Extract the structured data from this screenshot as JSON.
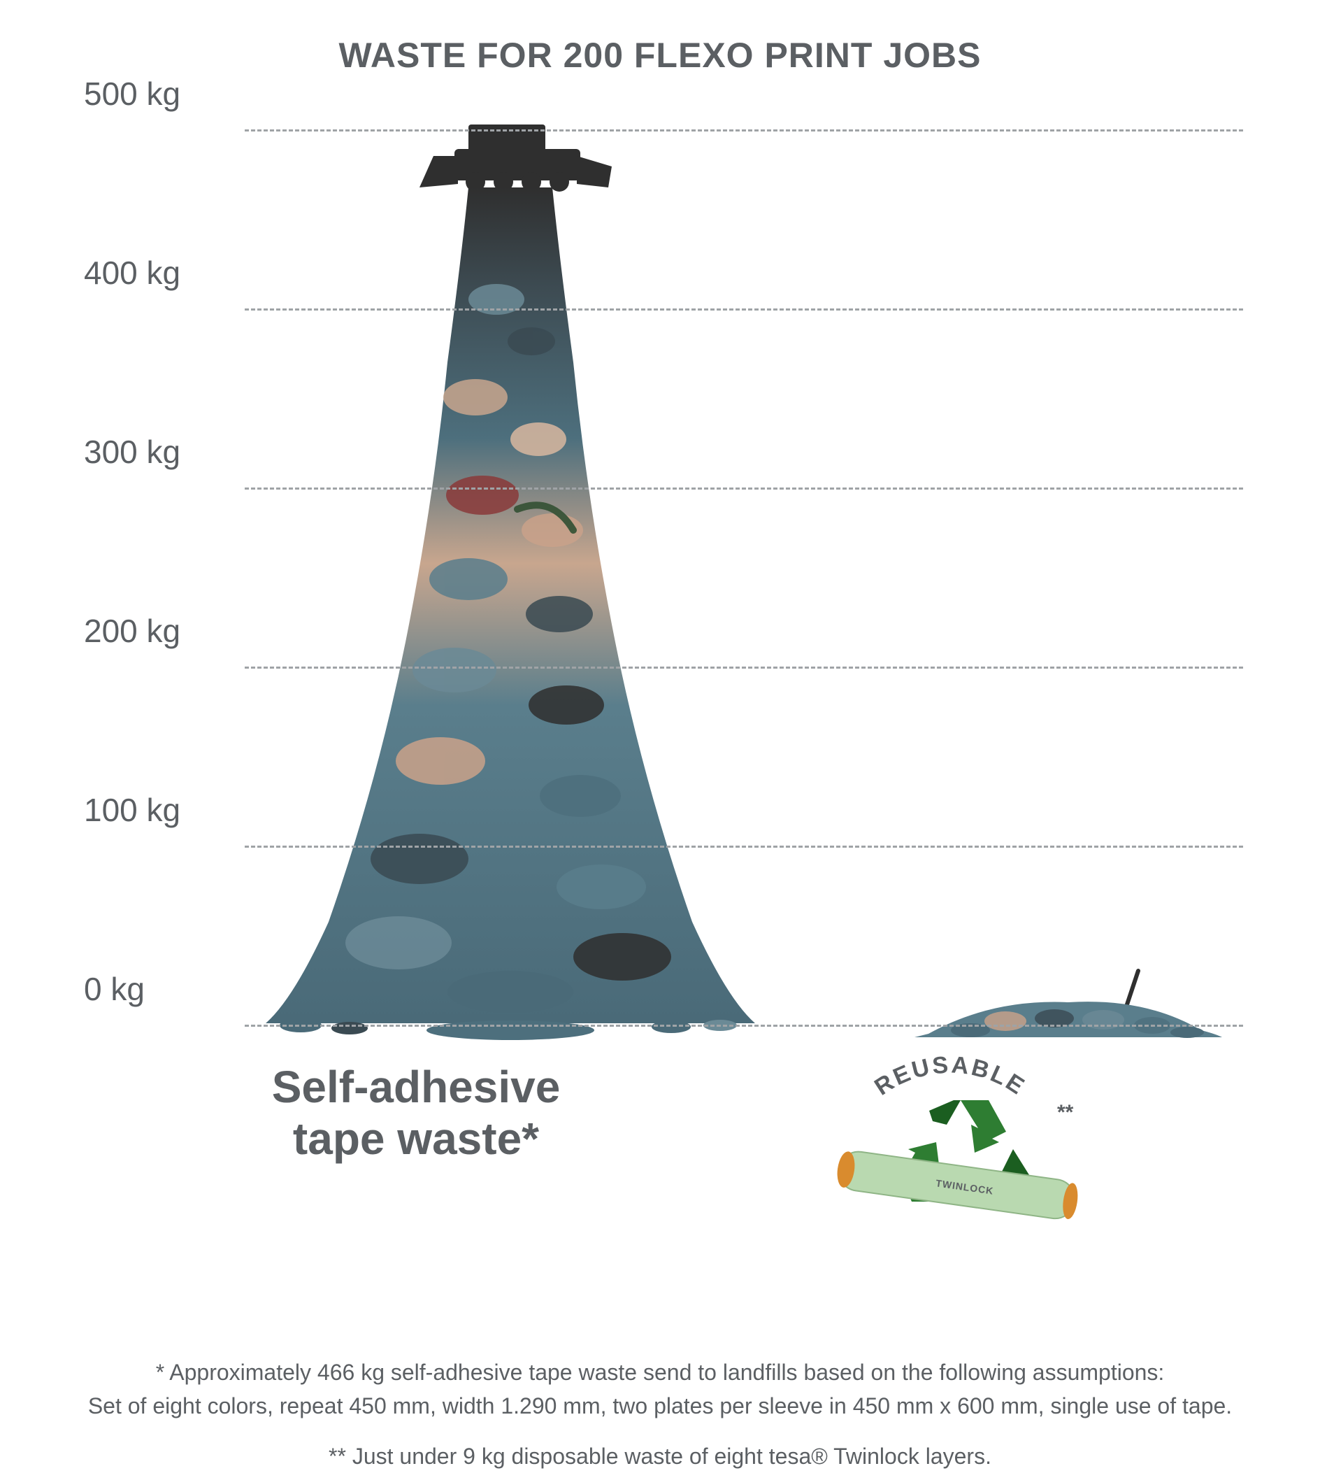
{
  "title": "WASTE FOR 200 FLEXO PRINT JOBS",
  "title_fontsize": 50,
  "title_color": "#5b5f63",
  "chart": {
    "type": "infographic-bar",
    "ylim": [
      0,
      500
    ],
    "ytick_step": 100,
    "y_unit": " kg",
    "ytick_labels": [
      "0 kg",
      "100 kg",
      "200 kg",
      "300 kg",
      "400 kg",
      "500 kg"
    ],
    "ytick_fontsize": 46,
    "ytick_color": "#5b5f63",
    "gridline_color": "#9fa3a6",
    "gridline_dash": "10,10",
    "background_color": "#ffffff",
    "series": [
      {
        "name": "self-adhesive-tape-waste",
        "value_kg": 466,
        "visual_top_kg": 480
      },
      {
        "name": "twinlock-reusable",
        "value_kg": 9,
        "visual_top_kg": 20
      }
    ],
    "pile_colors": {
      "top_dark": "#2f2f2f",
      "upper_blue": "#4d6f7d",
      "mid_tan": "#c8a68e",
      "mid_red": "#8a3a3a",
      "lower_blue": "#5a7e8c",
      "scatter_dark": "#3a4a52",
      "scatter_tan": "#caa28a"
    },
    "bulldozer_color": "#2f2f2f",
    "shovel_color": "#2f2f2f"
  },
  "labels": {
    "left": "Self-adhesive\ntape waste*",
    "left_fontsize": 64,
    "left_color": "#5b5f63",
    "reusable_text": "REUSABLE",
    "reusable_suffix": "**",
    "reusable_fontsize": 34,
    "reusable_color": "#5b5f63"
  },
  "recycle": {
    "arrow_color": "#2e7d32",
    "arrow_shadow": "#1b5e20",
    "roll_body_color": "#b9d9b0",
    "roll_end_color": "#d98b2e",
    "roll_label": "TWINLOCK",
    "roll_label_color": "#5b5f63"
  },
  "footnotes": {
    "fontsize": 32,
    "color": "#5b5f63",
    "note1": "* Approximately 466 kg self-adhesive tape waste send to landfills based on the following assumptions:\nSet of eight colors, repeat 450 mm, width 1.290 mm, two plates per sleeve in 450 mm x 600 mm, single use of tape.",
    "note2": "** Just under 9 kg disposable waste of eight tesa® Twinlock layers."
  }
}
